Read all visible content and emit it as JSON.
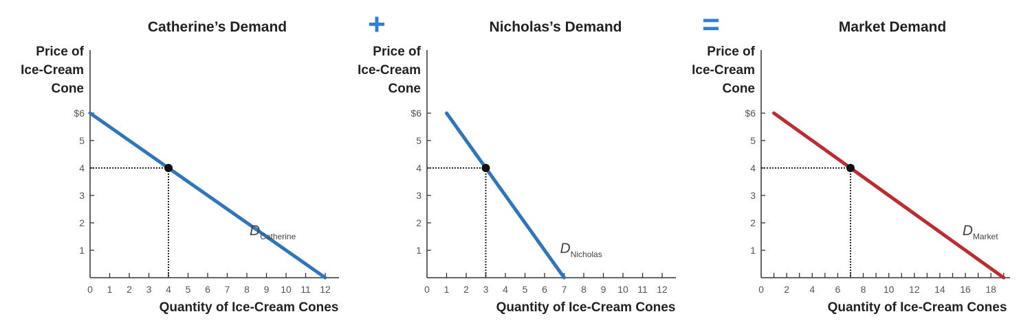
{
  "operators": [
    {
      "symbol": "+",
      "color": "#2f80d1"
    },
    {
      "symbol": "=",
      "color": "#2f80d1"
    }
  ],
  "colors": {
    "axis": "#333333",
    "blue_curve": "#2e75c0",
    "red_curve": "#be2a2f",
    "point": "#111111"
  },
  "chart_data": [
    {
      "type": "line",
      "title": "Catherine’s Demand",
      "ylabel": [
        "Price of",
        "Ice-Cream",
        "Cone"
      ],
      "xlabel": "Quantity of Ice-Cream Cones",
      "xlim": [
        0,
        12.7
      ],
      "ylim": [
        0,
        6
      ],
      "x_ticks": [
        0,
        1,
        2,
        3,
        4,
        5,
        6,
        7,
        8,
        9,
        10,
        11,
        12
      ],
      "x_tick_labels": [
        "0",
        "1",
        "2",
        "3",
        "4",
        "5",
        "6",
        "7",
        "8",
        "9",
        "10",
        "11",
        "12"
      ],
      "y_ticks": [
        1,
        2,
        3,
        4,
        5,
        6
      ],
      "y_tick_labels": [
        "1",
        "2",
        "3",
        "4",
        "5",
        "$6"
      ],
      "series": [
        {
          "name_main": "D",
          "name_sub": "Catherine",
          "color": "#2e75c0",
          "x": [
            0,
            12
          ],
          "y": [
            6,
            0
          ]
        }
      ],
      "highlight": {
        "x": 4,
        "y": 4
      },
      "grid": false
    },
    {
      "type": "line",
      "title": "Nicholas’s Demand",
      "ylabel": [
        "Price of",
        "Ice-Cream",
        "Cone"
      ],
      "xlabel": "Quantity of Ice-Cream Cones",
      "xlim": [
        0,
        12.7
      ],
      "ylim": [
        0,
        6
      ],
      "x_ticks": [
        0,
        1,
        2,
        3,
        4,
        5,
        6,
        7,
        8,
        9,
        10,
        11,
        12
      ],
      "x_tick_labels": [
        "0",
        "1",
        "2",
        "3",
        "4",
        "5",
        "6",
        "7",
        "8",
        "9",
        "10",
        "11",
        "12"
      ],
      "y_ticks": [
        1,
        2,
        3,
        4,
        5,
        6
      ],
      "y_tick_labels": [
        "1",
        "2",
        "3",
        "4",
        "5",
        "$6"
      ],
      "series": [
        {
          "name_main": "D",
          "name_sub": "Nicholas",
          "color": "#2e75c0",
          "x": [
            1,
            7
          ],
          "y": [
            6,
            0
          ]
        }
      ],
      "highlight": {
        "x": 3,
        "y": 4
      },
      "grid": false
    },
    {
      "type": "line",
      "title": "Market Demand",
      "ylabel": [
        "Price of",
        "Ice-Cream",
        "Cone"
      ],
      "xlabel": "Quantity of Ice-Cream Cones",
      "xlim": [
        0,
        19.5
      ],
      "ylim": [
        0,
        6
      ],
      "x_ticks": [
        0,
        1,
        2,
        3,
        4,
        5,
        6,
        7,
        8,
        9,
        10,
        11,
        12,
        13,
        14,
        15,
        16,
        17,
        18,
        19
      ],
      "x_tick_labels": [
        "0",
        "",
        "2",
        "",
        "4",
        "",
        "6",
        "",
        "8",
        "",
        "10",
        "",
        "12",
        "",
        "14",
        "",
        "16",
        "",
        "18",
        ""
      ],
      "y_ticks": [
        1,
        2,
        3,
        4,
        5,
        6
      ],
      "y_tick_labels": [
        "1",
        "2",
        "3",
        "4",
        "5",
        "$6"
      ],
      "series": [
        {
          "name_main": "D",
          "name_sub": "Market",
          "color": "#be2a2f",
          "x": [
            1,
            7,
            19
          ],
          "y": [
            6,
            4,
            0
          ]
        }
      ],
      "highlight": {
        "x": 7,
        "y": 4
      },
      "grid": false
    }
  ]
}
